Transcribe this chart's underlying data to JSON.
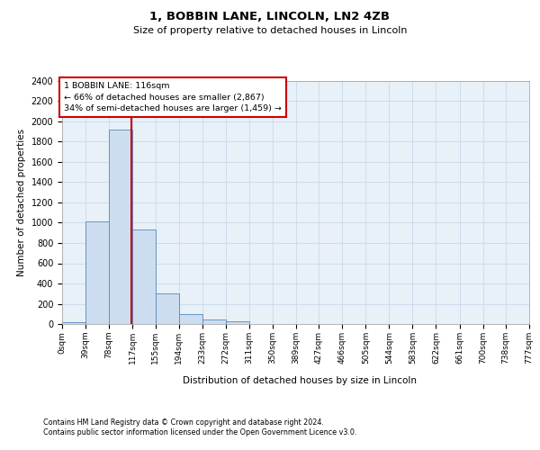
{
  "title1": "1, BOBBIN LANE, LINCOLN, LN2 4ZB",
  "title2": "Size of property relative to detached houses in Lincoln",
  "xlabel": "Distribution of detached houses by size in Lincoln",
  "ylabel": "Number of detached properties",
  "footnote1": "Contains HM Land Registry data © Crown copyright and database right 2024.",
  "footnote2": "Contains public sector information licensed under the Open Government Licence v3.0.",
  "annotation_line1": "1 BOBBIN LANE: 116sqm",
  "annotation_line2": "← 66% of detached houses are smaller (2,867)",
  "annotation_line3": "34% of semi-detached houses are larger (1,459) →",
  "property_size": 116,
  "bar_edges": [
    0,
    39,
    78,
    117,
    155,
    194,
    233,
    272,
    311,
    350,
    389,
    427,
    466,
    505,
    544,
    583,
    622,
    661,
    700,
    738,
    777
  ],
  "bar_heights": [
    20,
    1010,
    1920,
    930,
    305,
    100,
    45,
    30,
    0,
    0,
    0,
    0,
    0,
    0,
    0,
    0,
    0,
    0,
    0,
    0
  ],
  "bar_color": "#ccddf0",
  "bar_edge_color": "#5588bb",
  "red_line_color": "#cc0000",
  "grid_color": "#c8daea",
  "annotation_box_color": "#cc0000",
  "background_color": "#e8f0f8",
  "ylim": [
    0,
    2400
  ],
  "yticks": [
    0,
    200,
    400,
    600,
    800,
    1000,
    1200,
    1400,
    1600,
    1800,
    2000,
    2200,
    2400
  ],
  "xtick_labels": [
    "0sqm",
    "39sqm",
    "78sqm",
    "117sqm",
    "155sqm",
    "194sqm",
    "233sqm",
    "272sqm",
    "311sqm",
    "350sqm",
    "389sqm",
    "427sqm",
    "466sqm",
    "505sqm",
    "544sqm",
    "583sqm",
    "622sqm",
    "661sqm",
    "700sqm",
    "738sqm",
    "777sqm"
  ]
}
